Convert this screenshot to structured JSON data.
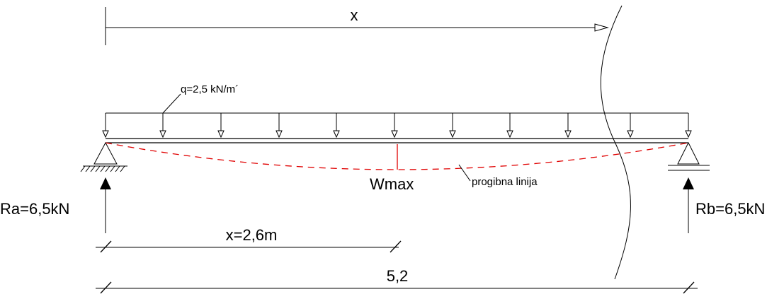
{
  "labels": {
    "x_top": "x",
    "load": "q=2,5 kN/m´",
    "wmax": "Wmax",
    "deflection": "progibna linija",
    "ra": "Ra=6,5kN",
    "rb": "Rb=6,5kN",
    "x_dim": "x=2,6m",
    "span": "5,2"
  },
  "colors": {
    "line": "#000000",
    "deflection": "#e00000"
  }
}
